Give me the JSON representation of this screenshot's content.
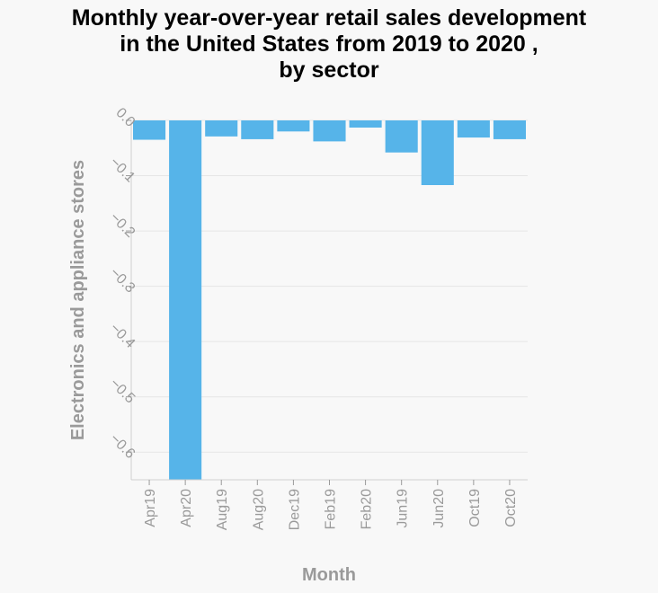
{
  "chart_data": {
    "type": "bar",
    "title": "Monthly year-over-year retail sales development\nin the United States from 2019 to 2020 ,\nby sector",
    "xlabel": "Month",
    "ylabel": "Electronics and appliance stores",
    "categories": [
      "Apr19",
      "Apr20",
      "Aug19",
      "Aug20",
      "Dec19",
      "Feb19",
      "Feb20",
      "Jun19",
      "Jun20",
      "Oct19",
      "Oct20"
    ],
    "values": [
      -0.035,
      -0.65,
      -0.029,
      -0.034,
      -0.02,
      -0.038,
      -0.013,
      -0.058,
      -0.117,
      -0.031,
      -0.034
    ],
    "ylim": [
      -0.65,
      0.0
    ],
    "yticks": [
      0.0,
      -0.1,
      -0.2,
      -0.3,
      -0.4,
      -0.5,
      -0.6
    ],
    "ytick_labels": [
      "0.0",
      "−0.1",
      "−0.2",
      "−0.3",
      "−0.4",
      "−0.5",
      "−0.6"
    ],
    "grid": true,
    "bar_color": "#56b4e9"
  }
}
